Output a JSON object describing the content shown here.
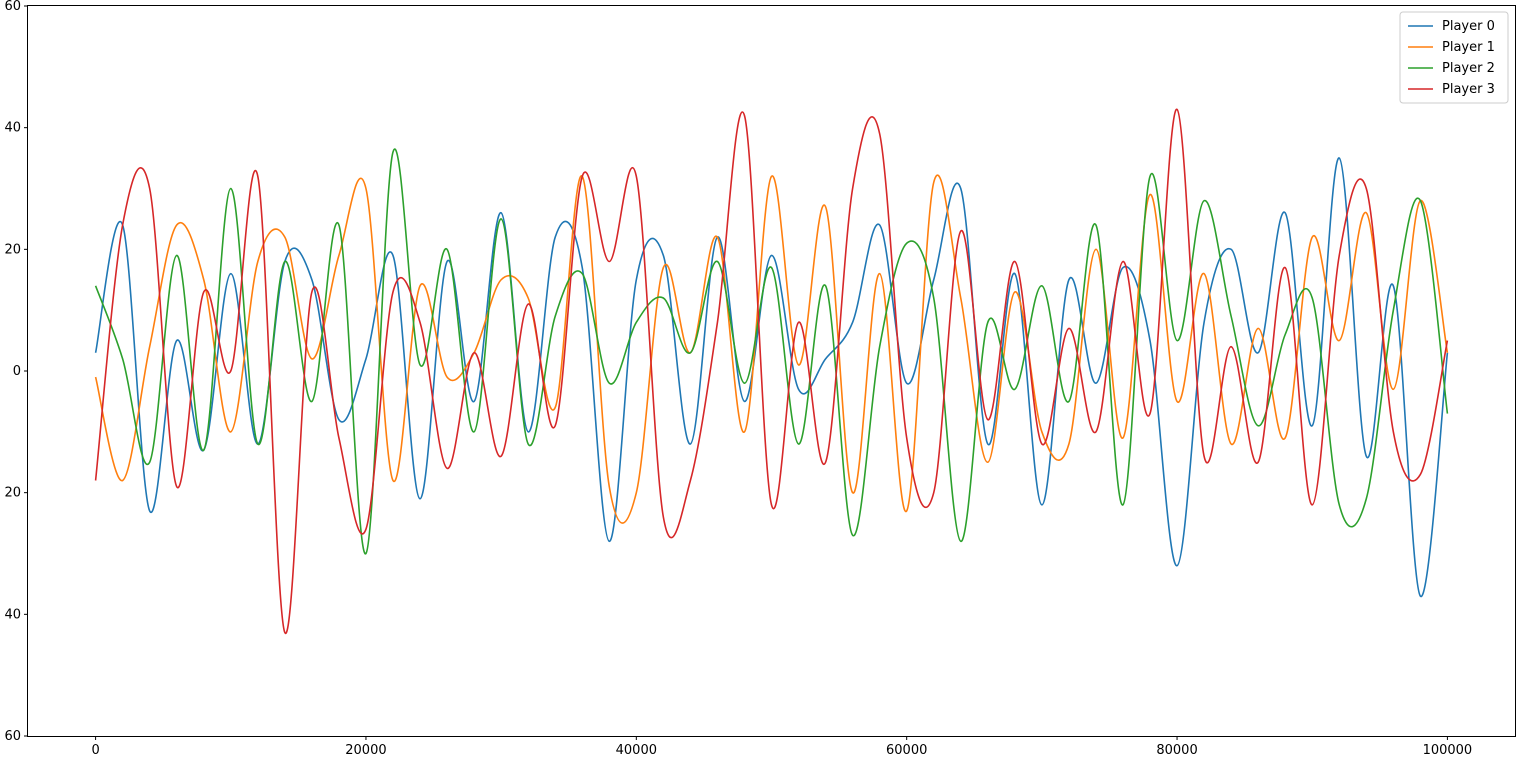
{
  "chart_data": {
    "type": "line",
    "title": "",
    "xlabel": "",
    "ylabel": "",
    "xlim": [
      -5000,
      105000
    ],
    "ylim": [
      -60,
      60
    ],
    "x_ticks": [
      0,
      20000,
      40000,
      60000,
      80000,
      100000
    ],
    "x_tick_labels": [
      "0",
      "20000",
      "40000",
      "60000",
      "80000",
      "100000"
    ],
    "y_ticks": [
      -60,
      -40,
      -20,
      0,
      20,
      40,
      60
    ],
    "y_tick_labels": [
      "60",
      "40",
      "20",
      "0",
      "20",
      "40",
      "60"
    ],
    "grid": false,
    "legend_position": "top-right",
    "x": [
      0,
      2000,
      4000,
      6000,
      8000,
      10000,
      12000,
      14000,
      16000,
      18000,
      20000,
      22000,
      24000,
      26000,
      28000,
      30000,
      32000,
      34000,
      36000,
      38000,
      40000,
      42000,
      44000,
      46000,
      48000,
      50000,
      52000,
      54000,
      56000,
      58000,
      60000,
      62000,
      64000,
      66000,
      68000,
      70000,
      72000,
      74000,
      76000,
      78000,
      80000,
      82000,
      84000,
      86000,
      88000,
      90000,
      92000,
      94000,
      96000,
      98000,
      100000
    ],
    "series": [
      {
        "name": "Player 0",
        "color": "#1f77b4",
        "values": [
          3,
          24,
          -23,
          5,
          -13,
          16,
          -12,
          18,
          15,
          -8,
          2,
          19,
          -21,
          18,
          -5,
          26,
          -10,
          22,
          17,
          -28,
          15,
          19,
          -12,
          22,
          -5,
          19,
          -3,
          2,
          8,
          24,
          -2,
          15,
          30,
          -12,
          16,
          -22,
          15,
          -2,
          17,
          5,
          -32,
          8,
          20,
          3,
          26,
          -9,
          35,
          -14,
          14,
          -37,
          3
        ]
      },
      {
        "name": "Player 1",
        "color": "#ff7f0e",
        "values": [
          -1,
          -18,
          4,
          24,
          15,
          -10,
          18,
          22,
          2,
          19,
          30,
          -18,
          14,
          -1,
          3,
          15,
          12,
          -6,
          32,
          -19,
          -20,
          17,
          3,
          22,
          -10,
          32,
          1,
          27,
          -20,
          16,
          -23,
          31,
          12,
          -15,
          13,
          -10,
          -12,
          20,
          -11,
          29,
          -5,
          16,
          -12,
          7,
          -11,
          22,
          5,
          26,
          -3,
          28,
          3
        ]
      },
      {
        "name": "Player 2",
        "color": "#2ca02c",
        "values": [
          14,
          2,
          -15,
          19,
          -13,
          30,
          -12,
          18,
          -5,
          24,
          -30,
          36,
          1,
          20,
          -10,
          25,
          -12,
          9,
          16,
          -2,
          8,
          12,
          3,
          18,
          -2,
          17,
          -12,
          14,
          -27,
          4,
          21,
          12,
          -28,
          8,
          -3,
          14,
          -5,
          24,
          -22,
          32,
          5,
          28,
          9,
          -9,
          6,
          12,
          -22,
          -21,
          10,
          28,
          -7
        ]
      },
      {
        "name": "Player 3",
        "color": "#d62728",
        "values": [
          -18,
          24,
          30,
          -19,
          13,
          0,
          32,
          -43,
          13,
          -11,
          -26,
          13,
          8,
          -16,
          3,
          -14,
          11,
          -9,
          32,
          18,
          32,
          -24,
          -18,
          8,
          42,
          -22,
          8,
          -15,
          30,
          39,
          -11,
          -20,
          23,
          -8,
          18,
          -12,
          7,
          -10,
          18,
          -7,
          43,
          -14,
          4,
          -15,
          17,
          -22,
          19,
          30,
          -10,
          -17,
          5
        ]
      }
    ]
  }
}
